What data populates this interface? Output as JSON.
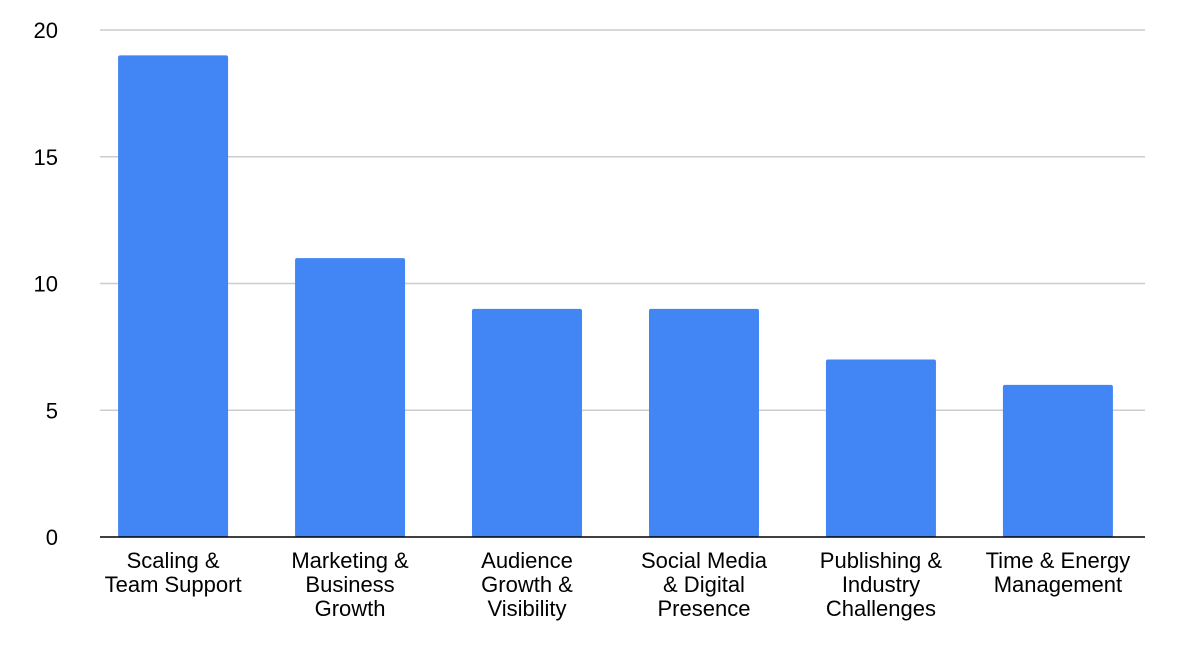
{
  "chart_data": {
    "type": "bar",
    "title": "",
    "xlabel": "",
    "ylabel": "",
    "categories": [
      [
        "Scaling &",
        "Team Support"
      ],
      [
        "Marketing &",
        "Business",
        "Growth"
      ],
      [
        "Audience",
        "Growth &",
        "Visibility"
      ],
      [
        "Social Media",
        "& Digital",
        "Presence"
      ],
      [
        "Publishing &",
        "Industry",
        "Challenges"
      ],
      [
        "Time & Energy",
        "Management"
      ]
    ],
    "values": [
      19,
      11,
      9,
      9,
      7,
      6
    ],
    "ylim": [
      0,
      20
    ],
    "yticks": [
      0,
      5,
      10,
      15,
      20
    ],
    "grid": true,
    "legend": "none",
    "colors": {
      "bar": "#4285f4",
      "grid": "#cccccc",
      "axis": "#000000"
    }
  }
}
